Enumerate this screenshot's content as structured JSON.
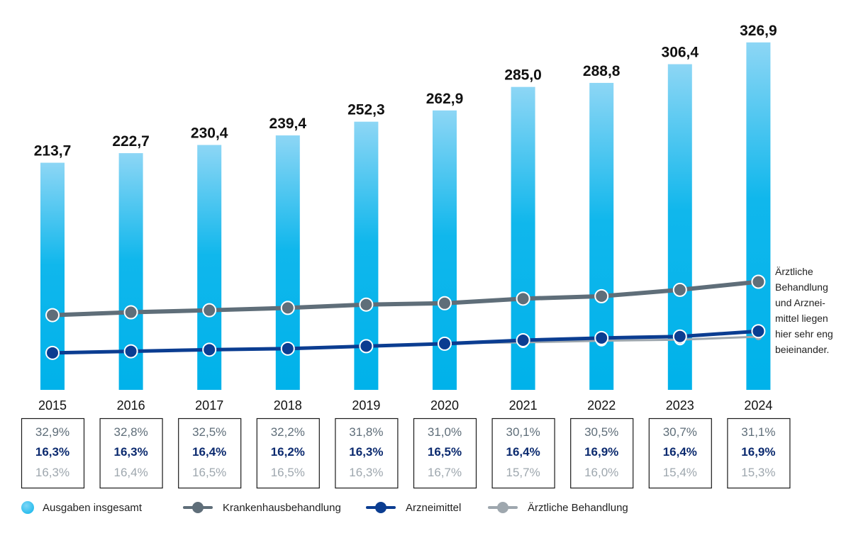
{
  "chart_data": {
    "type": "bar",
    "categories": [
      "2015",
      "2016",
      "2017",
      "2018",
      "2019",
      "2020",
      "2021",
      "2022",
      "2023",
      "2024"
    ],
    "series": [
      {
        "name": "Ausgaben insgesamt",
        "type": "bar",
        "color": "#0ab4ea",
        "values": [
          213.7,
          222.7,
          230.4,
          239.4,
          252.3,
          262.9,
          285.0,
          288.8,
          306.4,
          326.9
        ],
        "labels": [
          "213,7",
          "222,7",
          "230,4",
          "239,4",
          "252,3",
          "262,9",
          "285,0",
          "288,8",
          "306,4",
          "326,9"
        ]
      },
      {
        "name": "Krankenhausbehandlung",
        "type": "line",
        "color": "#5f6e79",
        "values": [
          70.3,
          73.0,
          74.9,
          77.1,
          80.2,
          81.5,
          85.8,
          88.1,
          94.1,
          101.7
        ],
        "shares": [
          "32,9%",
          "32,8%",
          "32,5%",
          "32,2%",
          "31,8%",
          "31,0%",
          "30,1%",
          "30,5%",
          "30,7%",
          "31,1%"
        ]
      },
      {
        "name": "Arzneimittel",
        "type": "line",
        "color": "#0b3d91",
        "values": [
          34.8,
          36.3,
          37.8,
          38.8,
          41.1,
          43.4,
          46.7,
          48.8,
          50.2,
          55.2
        ],
        "shares": [
          "16,3%",
          "16,3%",
          "16,4%",
          "16,2%",
          "16,3%",
          "16,5%",
          "16,4%",
          "16,9%",
          "16,4%",
          "16,9%"
        ]
      },
      {
        "name": "Ärztliche Behandlung",
        "type": "line",
        "color": "#9ea7ae",
        "values": [
          34.8,
          36.5,
          38.0,
          39.5,
          41.1,
          43.9,
          44.7,
          46.2,
          47.2,
          50.0
        ],
        "shares": [
          "16,3%",
          "16,4%",
          "16,5%",
          "16,5%",
          "16,3%",
          "16,7%",
          "15,7%",
          "16,0%",
          "15,4%",
          "15,3%"
        ]
      }
    ],
    "annotation": "Ärztliche Behandlung und Arznei-mittel liegen hier sehr eng beieinander."
  },
  "note_lines": [
    "Ärztliche",
    "Behandlung",
    "und Arznei-",
    "mittel liegen",
    "hier sehr eng",
    "beieinander."
  ],
  "legend": {
    "total": "Ausgaben insgesamt",
    "hospital": "Krankenhausbehandlung",
    "drugs": "Arzneimittel",
    "physician": "Ärztliche Behandlung"
  }
}
